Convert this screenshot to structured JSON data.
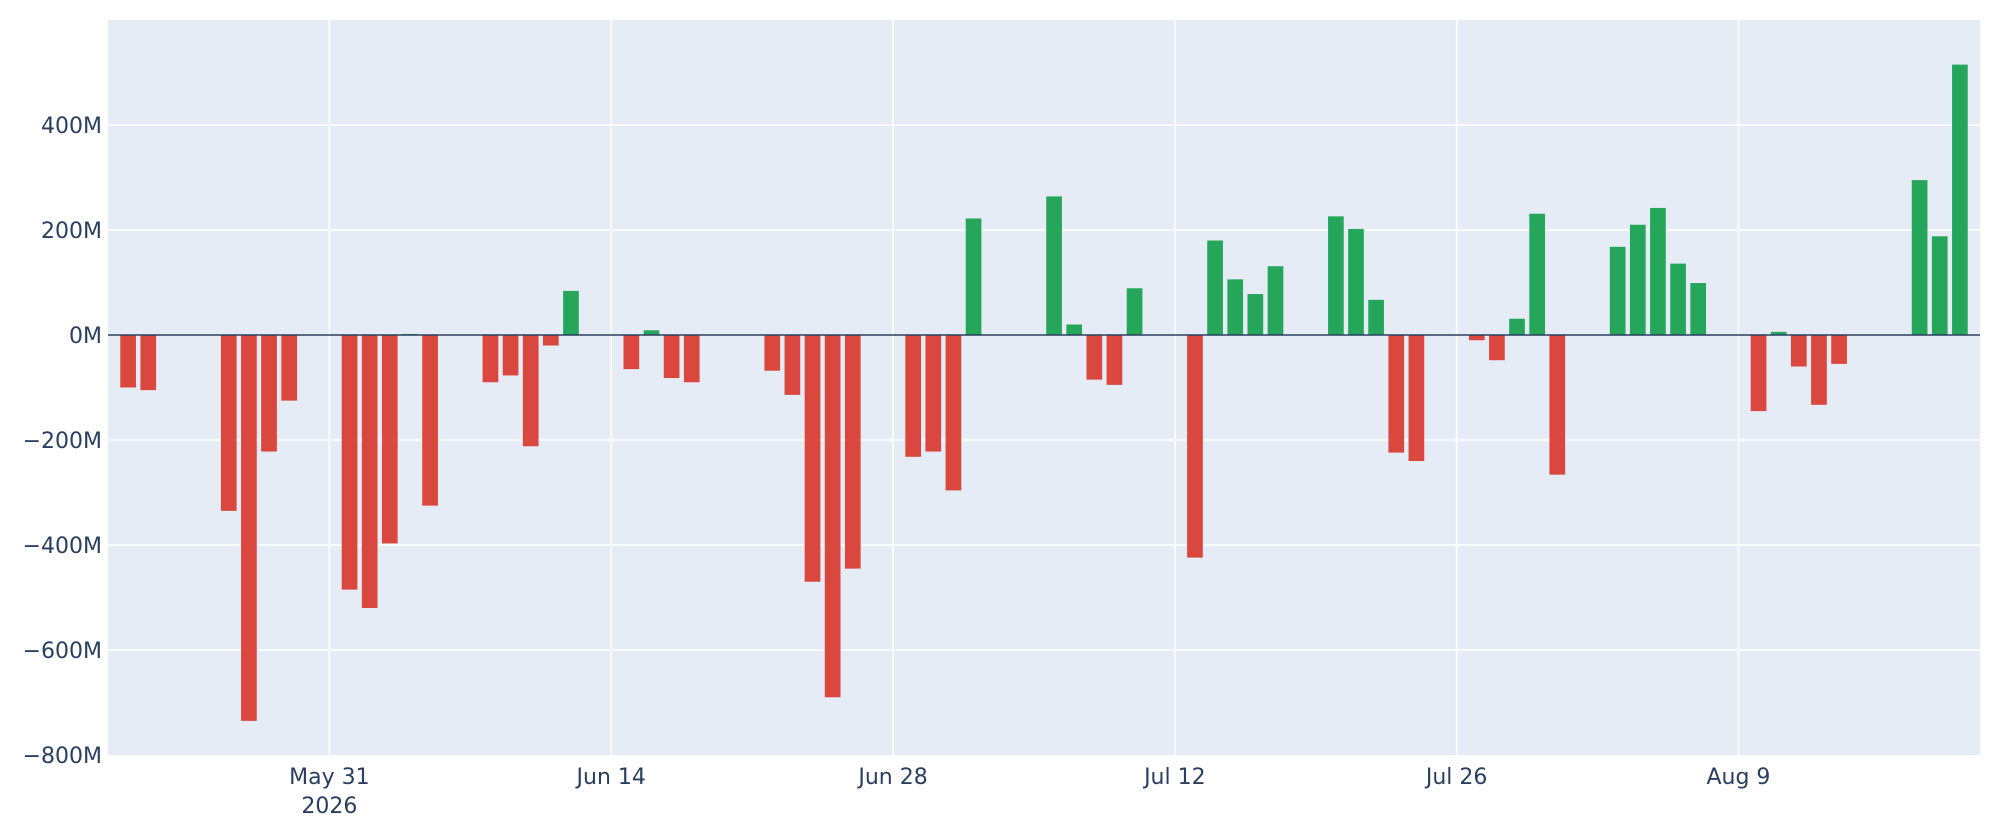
{
  "chart_data": {
    "type": "bar",
    "title": "",
    "xlabel": "",
    "ylabel": "",
    "x_range": [
      "2026-05-20",
      "2026-08-21"
    ],
    "ylim": [
      -800000000,
      600000000
    ],
    "grid": true,
    "legend": "none",
    "colors": {
      "plot_bg": "#e5ecf6",
      "grid": "#ffffff",
      "zero_line": "#2a3f5f",
      "positive": "#26a65b",
      "negative": "#d9473f",
      "text": "#2a3f5f"
    },
    "y_ticks": [
      {
        "value": 400000000,
        "label": "400M"
      },
      {
        "value": 200000000,
        "label": "200M"
      },
      {
        "value": 0,
        "label": "0M"
      },
      {
        "value": -200000000,
        "label": "−200M"
      },
      {
        "value": -400000000,
        "label": "−400M"
      },
      {
        "value": -600000000,
        "label": "−600M"
      },
      {
        "value": -800000000,
        "label": "−800M"
      }
    ],
    "x_ticks": [
      {
        "date": "2026-05-31",
        "label": "May 31",
        "sublabel": "2026"
      },
      {
        "date": "2026-06-14",
        "label": "Jun 14",
        "sublabel": ""
      },
      {
        "date": "2026-06-28",
        "label": "Jun 28",
        "sublabel": ""
      },
      {
        "date": "2026-07-12",
        "label": "Jul 12",
        "sublabel": ""
      },
      {
        "date": "2026-07-26",
        "label": "Jul 26",
        "sublabel": ""
      },
      {
        "date": "2026-08-09",
        "label": "Aug 9",
        "sublabel": ""
      }
    ],
    "bars": [
      {
        "x": "2026-05-21",
        "y": -100000000
      },
      {
        "x": "2026-05-22",
        "y": -105000000
      },
      {
        "x": "2026-05-26",
        "y": -335000000
      },
      {
        "x": "2026-05-27",
        "y": -735000000
      },
      {
        "x": "2026-05-28",
        "y": -222000000
      },
      {
        "x": "2026-05-29",
        "y": -125000000
      },
      {
        "x": "2026-06-01",
        "y": -485000000
      },
      {
        "x": "2026-06-02",
        "y": -520000000
      },
      {
        "x": "2026-06-03",
        "y": -397000000
      },
      {
        "x": "2026-06-04",
        "y": 2000000
      },
      {
        "x": "2026-06-05",
        "y": -325000000
      },
      {
        "x": "2026-06-08",
        "y": -90000000
      },
      {
        "x": "2026-06-09",
        "y": -77000000
      },
      {
        "x": "2026-06-10",
        "y": -212000000
      },
      {
        "x": "2026-06-11",
        "y": -20000000
      },
      {
        "x": "2026-06-12",
        "y": 84000000
      },
      {
        "x": "2026-06-15",
        "y": -65000000
      },
      {
        "x": "2026-06-16",
        "y": 9000000
      },
      {
        "x": "2026-06-17",
        "y": -82000000
      },
      {
        "x": "2026-06-18",
        "y": -90000000
      },
      {
        "x": "2026-06-22",
        "y": -68000000
      },
      {
        "x": "2026-06-23",
        "y": -114000000
      },
      {
        "x": "2026-06-24",
        "y": -470000000
      },
      {
        "x": "2026-06-25",
        "y": -690000000
      },
      {
        "x": "2026-06-26",
        "y": -445000000
      },
      {
        "x": "2026-06-29",
        "y": -232000000
      },
      {
        "x": "2026-06-30",
        "y": -222000000
      },
      {
        "x": "2026-07-01",
        "y": -296000000
      },
      {
        "x": "2026-07-02",
        "y": 222000000
      },
      {
        "x": "2026-07-06",
        "y": 264000000
      },
      {
        "x": "2026-07-07",
        "y": 20000000
      },
      {
        "x": "2026-07-08",
        "y": -85000000
      },
      {
        "x": "2026-07-09",
        "y": -95000000
      },
      {
        "x": "2026-07-10",
        "y": 89000000
      },
      {
        "x": "2026-07-13",
        "y": -424000000
      },
      {
        "x": "2026-07-14",
        "y": 180000000
      },
      {
        "x": "2026-07-15",
        "y": 106000000
      },
      {
        "x": "2026-07-16",
        "y": 78000000
      },
      {
        "x": "2026-07-17",
        "y": 131000000
      },
      {
        "x": "2026-07-20",
        "y": 226000000
      },
      {
        "x": "2026-07-21",
        "y": 202000000
      },
      {
        "x": "2026-07-22",
        "y": 67000000
      },
      {
        "x": "2026-07-23",
        "y": -224000000
      },
      {
        "x": "2026-07-24",
        "y": -240000000
      },
      {
        "x": "2026-07-27",
        "y": -10000000
      },
      {
        "x": "2026-07-28",
        "y": -48000000
      },
      {
        "x": "2026-07-29",
        "y": 31000000
      },
      {
        "x": "2026-07-30",
        "y": 231000000
      },
      {
        "x": "2026-07-31",
        "y": -266000000
      },
      {
        "x": "2026-08-03",
        "y": 168000000
      },
      {
        "x": "2026-08-04",
        "y": 210000000
      },
      {
        "x": "2026-08-05",
        "y": 242000000
      },
      {
        "x": "2026-08-06",
        "y": 136000000
      },
      {
        "x": "2026-08-07",
        "y": 99000000
      },
      {
        "x": "2026-08-10",
        "y": -145000000
      },
      {
        "x": "2026-08-11",
        "y": 6000000
      },
      {
        "x": "2026-08-12",
        "y": -60000000
      },
      {
        "x": "2026-08-13",
        "y": -133000000
      },
      {
        "x": "2026-08-14",
        "y": -55000000
      },
      {
        "x": "2026-08-18",
        "y": 295000000
      },
      {
        "x": "2026-08-19",
        "y": 188000000
      },
      {
        "x": "2026-08-20",
        "y": 515000000
      }
    ]
  }
}
